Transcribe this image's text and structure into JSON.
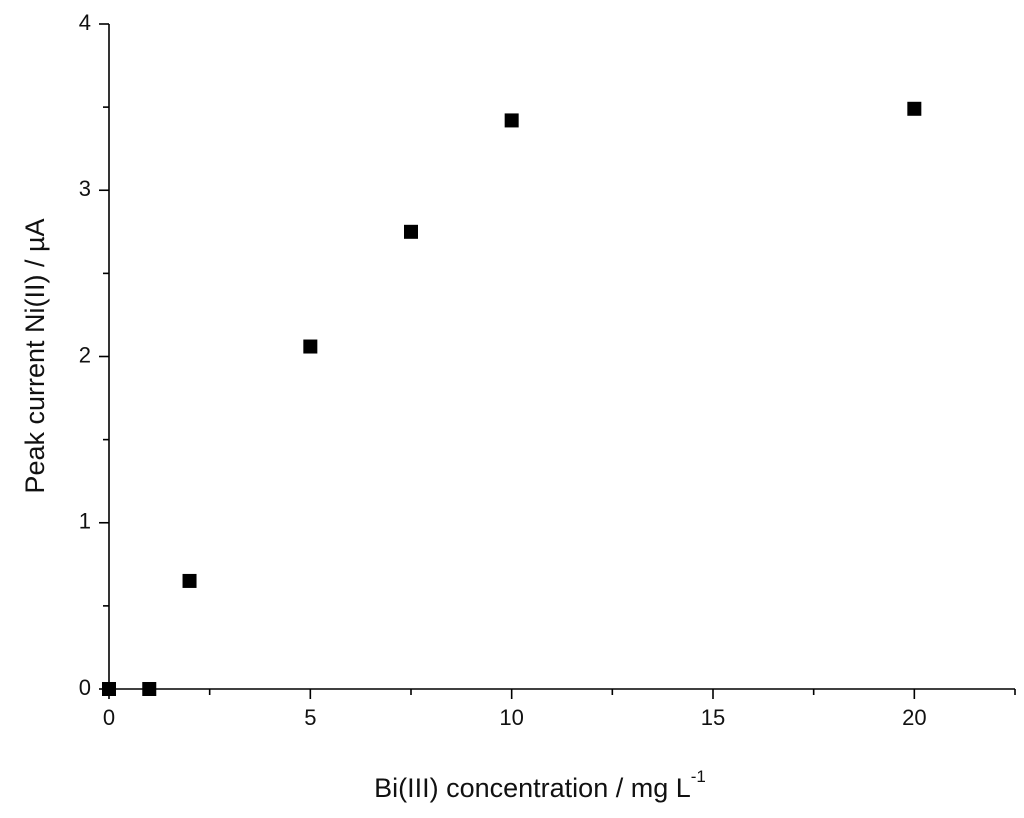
{
  "chart_data": {
    "type": "scatter",
    "xlabel": {
      "text": "Bi(III) concentration / mg L",
      "superscript": "-1"
    },
    "ylabel": "Peak current Ni(II) / µA",
    "x": [
      0,
      1,
      2,
      5,
      7.5,
      10,
      20
    ],
    "series": [
      {
        "color": "#000000",
        "values": [
          0,
          0,
          0.65,
          2.06,
          2.75,
          3.42,
          3.49
        ]
      }
    ],
    "xlim": [
      0,
      22.5
    ],
    "ylim": [
      0,
      4
    ],
    "xticks": [
      0,
      5,
      10,
      15,
      20
    ],
    "yticks": [
      0,
      1,
      2,
      3,
      4
    ],
    "xminorticks": [
      2.5,
      7.5,
      12.5,
      17.5,
      22.5
    ],
    "yminorticks": [
      0.5,
      1.5,
      2.5,
      3.5
    ]
  }
}
